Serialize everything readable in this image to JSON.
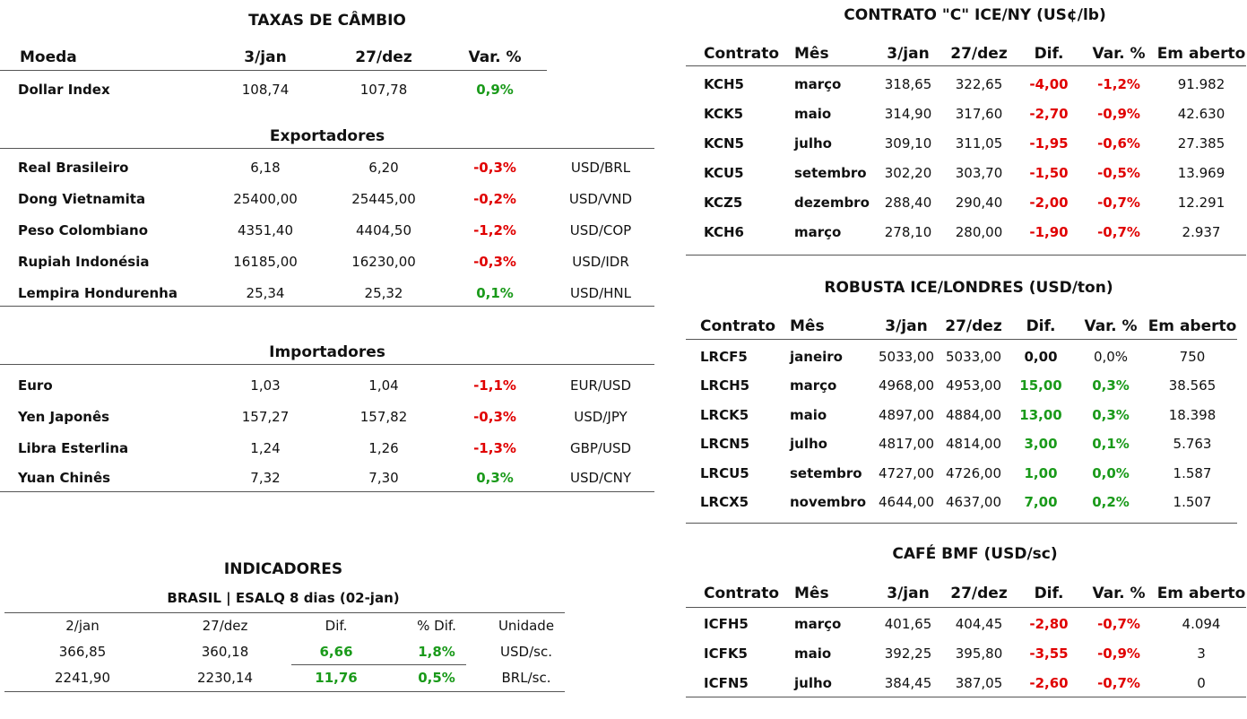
{
  "fx": {
    "title": "TAXAS DE CÂMBIO",
    "header": [
      "Moeda",
      "3/jan",
      "27/dez",
      "Var. %"
    ],
    "index_row": [
      "Dollar Index",
      "108,74",
      "107,78",
      "0,9%"
    ],
    "exporters": {
      "title": "Exportadores",
      "rows": [
        [
          "Real Brasileiro",
          "6,18",
          "6,20",
          "-0,3%",
          "USD/BRL"
        ],
        [
          "Dong Vietnamita",
          "25400,00",
          "25445,00",
          "-0,2%",
          "USD/VND"
        ],
        [
          "Peso Colombiano",
          "4351,40",
          "4404,50",
          "-1,2%",
          "USD/COP"
        ],
        [
          "Rupiah Indonésia",
          "16185,00",
          "16230,00",
          "-0,3%",
          "USD/IDR"
        ],
        [
          "Lempira Hondurenha",
          "25,34",
          "25,32",
          "0,1%",
          "USD/HNL"
        ]
      ]
    },
    "importers": {
      "title": "Importadores",
      "rows": [
        [
          "Euro",
          "1,03",
          "1,04",
          "-1,1%",
          "EUR/USD"
        ],
        [
          "Yen Japonês",
          "157,27",
          "157,82",
          "-0,3%",
          "USD/JPY"
        ],
        [
          "Libra Esterlina",
          "1,24",
          "1,26",
          "-1,3%",
          "GBP/USD"
        ],
        [
          "Yuan Chinês",
          "7,32",
          "7,30",
          "0,3%",
          "USD/CNY"
        ]
      ]
    }
  },
  "indicators": {
    "title": "INDICADORES",
    "subtitle": "BRASIL | ESALQ 8 dias (02-jan)",
    "header": [
      "2/jan",
      "27/dez",
      "Dif.",
      "% Dif.",
      "Unidade"
    ],
    "rows": [
      [
        "366,85",
        "360,18",
        "6,66",
        "1,8%",
        "USD/sc."
      ],
      [
        "2241,90",
        "2230,14",
        "11,76",
        "0,5%",
        "BRL/sc."
      ]
    ]
  },
  "arabica": {
    "title": "CONTRATO \"C\" ICE/NY (US¢/lb)",
    "header": [
      "Contrato",
      "Mês",
      "3/jan",
      "27/dez",
      "Dif.",
      "Var. %",
      "Em aberto"
    ],
    "rows": [
      [
        "KCH5",
        "março",
        "318,65",
        "322,65",
        "-4,00",
        "-1,2%",
        "91.982"
      ],
      [
        "KCK5",
        "maio",
        "314,90",
        "317,60",
        "-2,70",
        "-0,9%",
        "42.630"
      ],
      [
        "KCN5",
        "julho",
        "309,10",
        "311,05",
        "-1,95",
        "-0,6%",
        "27.385"
      ],
      [
        "KCU5",
        "setembro",
        "302,20",
        "303,70",
        "-1,50",
        "-0,5%",
        "13.969"
      ],
      [
        "KCZ5",
        "dezembro",
        "288,40",
        "290,40",
        "-2,00",
        "-0,7%",
        "12.291"
      ],
      [
        "KCH6",
        "março",
        "278,10",
        "280,00",
        "-1,90",
        "-0,7%",
        "2.937"
      ]
    ]
  },
  "robusta": {
    "title": "ROBUSTA ICE/LONDRES (USD/ton)",
    "header": [
      "Contrato",
      "Mês",
      "3/jan",
      "27/dez",
      "Dif.",
      "Var. %",
      "Em aberto"
    ],
    "rows": [
      [
        "LRCF5",
        "janeiro",
        "5033,00",
        "5033,00",
        "0,00",
        "0,0%",
        "750"
      ],
      [
        "LRCH5",
        "março",
        "4968,00",
        "4953,00",
        "15,00",
        "0,3%",
        "38.565"
      ],
      [
        "LRCK5",
        "maio",
        "4897,00",
        "4884,00",
        "13,00",
        "0,3%",
        "18.398"
      ],
      [
        "LRCN5",
        "julho",
        "4817,00",
        "4814,00",
        "3,00",
        "0,1%",
        "5.763"
      ],
      [
        "LRCU5",
        "setembro",
        "4727,00",
        "4726,00",
        "1,00",
        "0,0%",
        "1.587"
      ],
      [
        "LRCX5",
        "novembro",
        "4644,00",
        "4637,00",
        "7,00",
        "0,2%",
        "1.507"
      ]
    ]
  },
  "bmf": {
    "title": "CAFÉ BMF (USD/sc)",
    "header": [
      "Contrato",
      "Mês",
      "3/jan",
      "27/dez",
      "Dif.",
      "Var. %",
      "Em aberto"
    ],
    "rows": [
      [
        "ICFH5",
        "março",
        "401,65",
        "404,45",
        "-2,80",
        "-0,7%",
        "4.094"
      ],
      [
        "ICFK5",
        "maio",
        "392,25",
        "395,80",
        "-3,55",
        "-0,9%",
        "3"
      ],
      [
        "ICFN5",
        "julho",
        "384,45",
        "387,05",
        "-2,60",
        "-0,7%",
        "0"
      ]
    ]
  }
}
